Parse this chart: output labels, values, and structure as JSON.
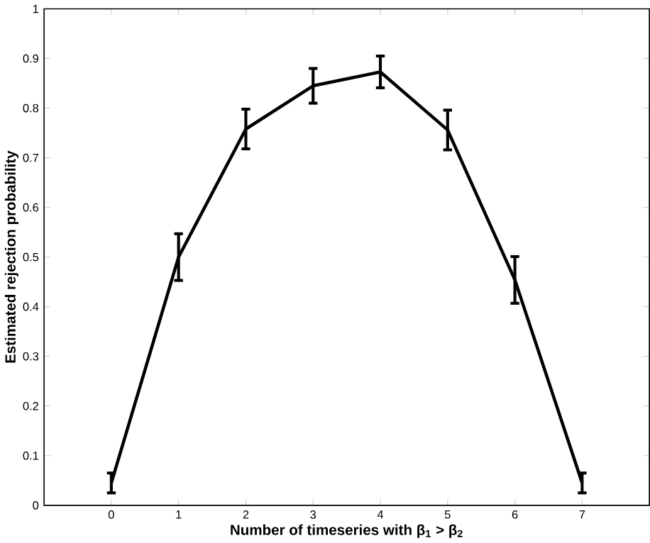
{
  "chart_data": {
    "type": "line",
    "xlabel": "Number of timeseries with β$_{1}$ > β$_{2}$",
    "ylabel": "Estimated rejection probability",
    "x": [
      0,
      1,
      2,
      3,
      4,
      5,
      6,
      7
    ],
    "series": [
      {
        "color": "#000000",
        "values": [
          0.045,
          0.5,
          0.758,
          0.845,
          0.873,
          0.756,
          0.454,
          0.045
        ],
        "errors": [
          0.02,
          0.047,
          0.04,
          0.035,
          0.032,
          0.04,
          0.047,
          0.02
        ]
      }
    ],
    "xlim": [
      -1,
      8
    ],
    "ylim": [
      0,
      1
    ],
    "xticks": [
      0,
      1,
      2,
      3,
      4,
      5,
      6,
      7
    ],
    "yticks": [
      0,
      0.1,
      0.2,
      0.3,
      0.4,
      0.5,
      0.6,
      0.7,
      0.8,
      0.9,
      1
    ],
    "grid": false,
    "marker": "none",
    "line_style": "solid"
  }
}
